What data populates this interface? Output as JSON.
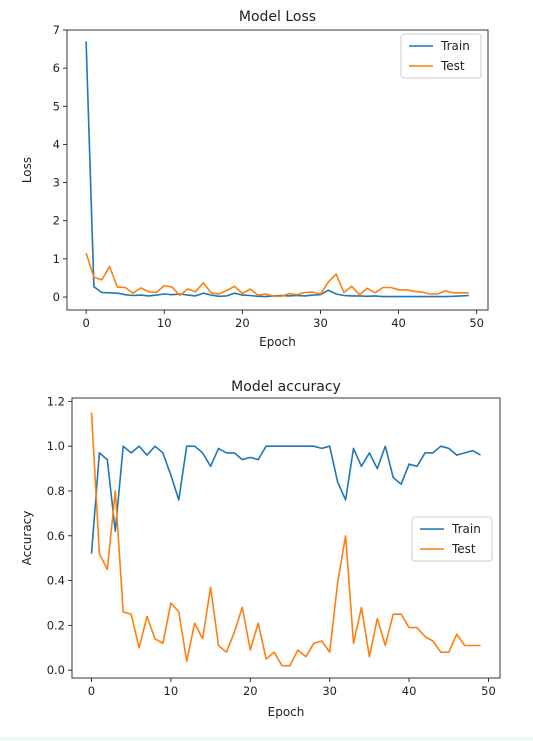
{
  "colors": {
    "train": "#1f77b4",
    "test": "#ff7f0e",
    "axis": "#222222"
  },
  "chart_data": [
    {
      "type": "line",
      "title": "Model Loss",
      "xlabel": "Epoch",
      "ylabel": "Loss",
      "xlim": [
        -2.45,
        51.45
      ],
      "ylim": [
        -0.34,
        7.0
      ],
      "xticks": [
        0,
        10,
        20,
        30,
        40,
        50
      ],
      "yticks": [
        0,
        1,
        2,
        3,
        4,
        5,
        6,
        7
      ],
      "legend": "top-right",
      "grid": false,
      "series": [
        {
          "name": "Train",
          "x": [
            0,
            1,
            2,
            3,
            4,
            5,
            6,
            7,
            8,
            9,
            10,
            11,
            12,
            13,
            14,
            15,
            16,
            17,
            18,
            19,
            20,
            21,
            22,
            23,
            24,
            25,
            26,
            27,
            28,
            29,
            30,
            31,
            32,
            33,
            34,
            35,
            36,
            37,
            38,
            39,
            40,
            41,
            42,
            43,
            44,
            45,
            46,
            47,
            48,
            49
          ],
          "y": [
            6.7,
            0.27,
            0.12,
            0.11,
            0.1,
            0.06,
            0.04,
            0.05,
            0.03,
            0.05,
            0.08,
            0.06,
            0.08,
            0.05,
            0.03,
            0.1,
            0.05,
            0.02,
            0.03,
            0.1,
            0.05,
            0.04,
            0.02,
            0.01,
            0.03,
            0.04,
            0.03,
            0.04,
            0.03,
            0.05,
            0.06,
            0.18,
            0.08,
            0.04,
            0.03,
            0.03,
            0.02,
            0.03,
            0.01,
            0.01,
            0.01,
            0.01,
            0.01,
            0.01,
            0.01,
            0.01,
            0.01,
            0.02,
            0.03,
            0.04
          ]
        },
        {
          "name": "Test",
          "x": [
            0,
            1,
            2,
            3,
            4,
            5,
            6,
            7,
            8,
            9,
            10,
            11,
            12,
            13,
            14,
            15,
            16,
            17,
            18,
            19,
            20,
            21,
            22,
            23,
            24,
            25,
            26,
            27,
            28,
            29,
            30,
            31,
            32,
            33,
            34,
            35,
            36,
            37,
            38,
            39,
            40,
            41,
            42,
            43,
            44,
            45,
            46,
            47,
            48,
            49
          ],
          "y": [
            1.15,
            0.52,
            0.45,
            0.8,
            0.26,
            0.25,
            0.1,
            0.24,
            0.14,
            0.12,
            0.3,
            0.26,
            0.04,
            0.21,
            0.14,
            0.37,
            0.11,
            0.08,
            0.17,
            0.28,
            0.09,
            0.21,
            0.05,
            0.08,
            0.02,
            0.02,
            0.09,
            0.06,
            0.12,
            0.13,
            0.08,
            0.39,
            0.6,
            0.12,
            0.28,
            0.06,
            0.23,
            0.11,
            0.25,
            0.25,
            0.19,
            0.19,
            0.15,
            0.13,
            0.08,
            0.08,
            0.16,
            0.11,
            0.11,
            0.11
          ]
        }
      ]
    },
    {
      "type": "line",
      "title": "Model accuracy",
      "xlabel": "Epoch",
      "ylabel": "Accuracy",
      "xlim": [
        -2.45,
        51.45
      ],
      "ylim": [
        -0.035,
        1.215
      ],
      "xticks": [
        0,
        10,
        20,
        30,
        40,
        50
      ],
      "yticks": [
        0.0,
        0.2,
        0.4,
        0.6,
        0.8,
        1.0,
        1.2
      ],
      "legend": "center-right",
      "grid": false,
      "series": [
        {
          "name": "Train",
          "x": [
            0,
            1,
            2,
            3,
            4,
            5,
            6,
            7,
            8,
            9,
            10,
            11,
            12,
            13,
            14,
            15,
            16,
            17,
            18,
            19,
            20,
            21,
            22,
            23,
            24,
            25,
            26,
            27,
            28,
            29,
            30,
            31,
            32,
            33,
            34,
            35,
            36,
            37,
            38,
            39,
            40,
            41,
            42,
            43,
            44,
            45,
            46,
            47,
            48,
            49
          ],
          "y": [
            0.52,
            0.97,
            0.94,
            0.62,
            1.0,
            0.97,
            1.0,
            0.96,
            1.0,
            0.97,
            0.87,
            0.76,
            1.0,
            1.0,
            0.97,
            0.91,
            0.99,
            0.97,
            0.97,
            0.94,
            0.95,
            0.94,
            1.0,
            1.0,
            1.0,
            1.0,
            1.0,
            1.0,
            1.0,
            0.99,
            1.0,
            0.84,
            0.76,
            0.99,
            0.91,
            0.97,
            0.9,
            1.0,
            0.86,
            0.83,
            0.92,
            0.91,
            0.97,
            0.97,
            1.0,
            0.99,
            0.96,
            0.97,
            0.98,
            0.96
          ]
        },
        {
          "name": "Test",
          "x": [
            0,
            1,
            2,
            3,
            4,
            5,
            6,
            7,
            8,
            9,
            10,
            11,
            12,
            13,
            14,
            15,
            16,
            17,
            18,
            19,
            20,
            21,
            22,
            23,
            24,
            25,
            26,
            27,
            28,
            29,
            30,
            31,
            32,
            33,
            34,
            35,
            36,
            37,
            38,
            39,
            40,
            41,
            42,
            43,
            44,
            45,
            46,
            47,
            48,
            49
          ],
          "y": [
            1.15,
            0.52,
            0.45,
            0.8,
            0.26,
            0.25,
            0.1,
            0.24,
            0.14,
            0.12,
            0.3,
            0.26,
            0.04,
            0.21,
            0.14,
            0.37,
            0.11,
            0.08,
            0.17,
            0.28,
            0.09,
            0.21,
            0.05,
            0.08,
            0.02,
            0.02,
            0.09,
            0.06,
            0.12,
            0.13,
            0.08,
            0.39,
            0.6,
            0.12,
            0.28,
            0.06,
            0.23,
            0.11,
            0.25,
            0.25,
            0.19,
            0.19,
            0.15,
            0.13,
            0.08,
            0.08,
            0.16,
            0.11,
            0.11,
            0.11
          ]
        }
      ]
    }
  ]
}
